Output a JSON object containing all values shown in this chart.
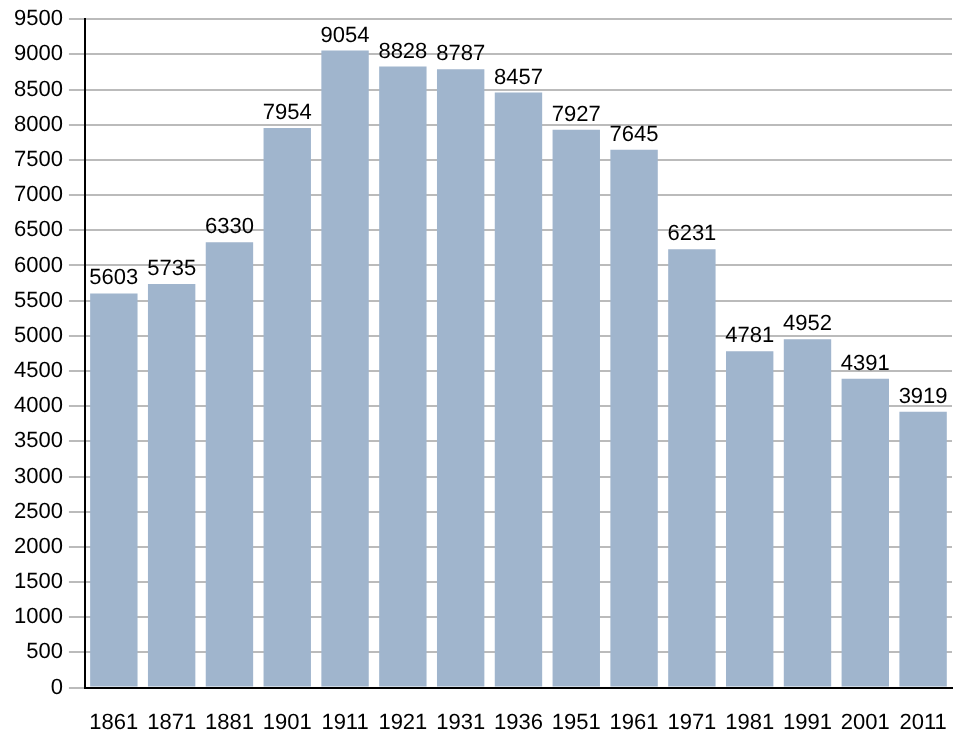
{
  "chart_data": {
    "type": "bar",
    "categories": [
      "1861",
      "1871",
      "1881",
      "1901",
      "1911",
      "1921",
      "1931",
      "1936",
      "1951",
      "1961",
      "1971",
      "1981",
      "1991",
      "2001",
      "2011"
    ],
    "values": [
      5603,
      5735,
      6330,
      7954,
      9054,
      8828,
      8787,
      8457,
      7927,
      7645,
      6231,
      4781,
      4952,
      4391,
      3919
    ],
    "color": "#a0b5cd",
    "ylim": [
      0,
      9500
    ],
    "yticks": [
      0,
      500,
      1000,
      1500,
      2000,
      2500,
      3000,
      3500,
      4000,
      4500,
      5000,
      5500,
      6000,
      6500,
      7000,
      7500,
      8000,
      8500,
      9000,
      9500
    ],
    "grid": "y",
    "data_labels": true,
    "legend": false
  }
}
